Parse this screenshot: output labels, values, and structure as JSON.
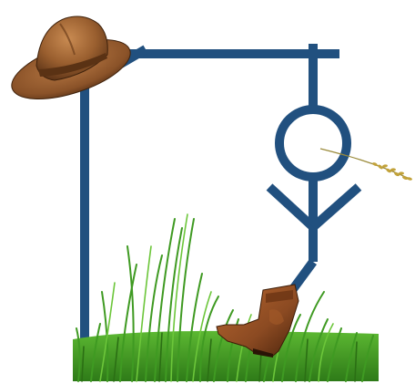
{
  "game": {
    "type": "hangman",
    "wrong_guesses": 6,
    "max_wrong_guesses": 6
  },
  "colors": {
    "gallows": "#21507f",
    "figure": "#21507f",
    "grass_dark": "#2f7f1c",
    "grass_mid": "#45a526",
    "grass_light": "#7bcf3c",
    "hat_brown": "#8a5228",
    "boot_brown": "#8b4a22",
    "wheat": "#c2a23a"
  },
  "icons": {
    "hat": "cowboy-hat-icon",
    "boot": "cowboy-boot-icon",
    "wheat": "wheat-stalk-icon"
  }
}
